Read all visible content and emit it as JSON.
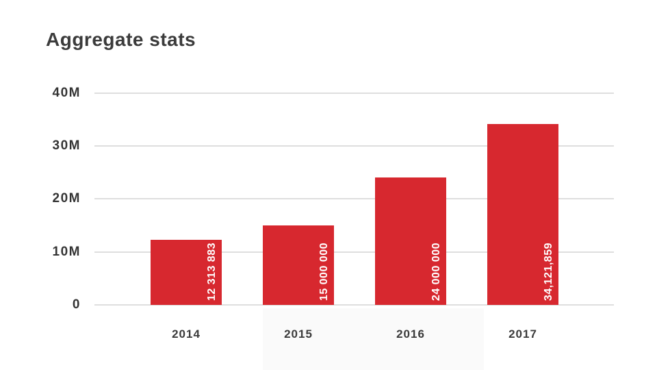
{
  "title": "Aggregate stats",
  "chart_data": {
    "type": "bar",
    "title": "Aggregate stats",
    "categories": [
      "2014",
      "2015",
      "2016",
      "2017"
    ],
    "values": [
      12313883,
      15000000,
      24000000,
      34121859
    ],
    "value_labels": [
      "12 313 883",
      "15 000 000",
      "24 000 000",
      "34,121,859"
    ],
    "y_ticks": [
      {
        "label": "40M",
        "value": 40000000
      },
      {
        "label": "30M",
        "value": 30000000
      },
      {
        "label": "20M",
        "value": 20000000
      },
      {
        "label": "10M",
        "value": 10000000
      },
      {
        "label": "0",
        "value": 0
      }
    ],
    "ylim": [
      0,
      40000000
    ],
    "xlabel": "",
    "ylabel": "",
    "grid": true,
    "legend": false,
    "bar_color": "#d7282f",
    "value_label_color": "#ffffff",
    "text_color": "#3b3b3b",
    "gridline_color": "#dedede"
  }
}
